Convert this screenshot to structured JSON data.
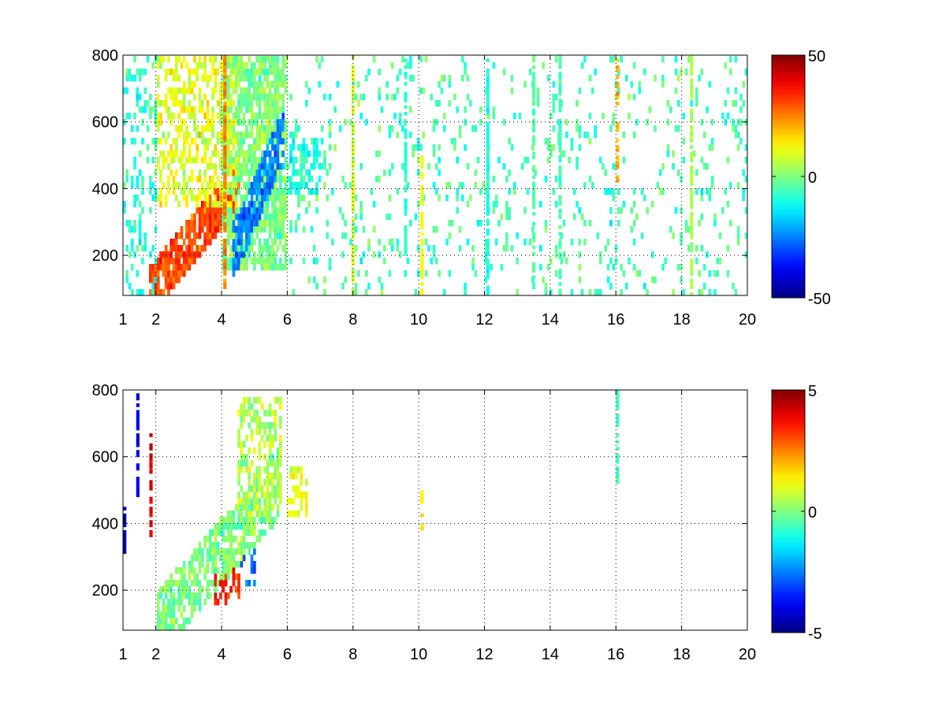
{
  "chart_data": [
    {
      "type": "heatmap",
      "title": "",
      "xlabel": "",
      "ylabel": "",
      "xlim": [
        1,
        20
      ],
      "ylim": [
        80,
        800
      ],
      "x_ticks": [
        "1",
        "2",
        "4",
        "6",
        "8",
        "10",
        "12",
        "14",
        "16",
        "18",
        "20"
      ],
      "y_ticks": [
        "200",
        "400",
        "600",
        "800"
      ],
      "grid": true,
      "colormap": "jet",
      "colorbar": {
        "min": -50,
        "max": 50,
        "ticks": [
          "50",
          "0",
          "-50"
        ]
      },
      "patterns": [
        {
          "kind": "diagonal_band",
          "x0": 1.8,
          "y0": 90,
          "x1": 4.6,
          "y1": 420,
          "width": 150,
          "value": 30,
          "density": 0.85
        },
        {
          "kind": "region",
          "x": [
            4.0,
            6.0
          ],
          "y": [
            160,
            800
          ],
          "value": 0,
          "density": 0.75
        },
        {
          "kind": "diagonal_band",
          "x0": 4.3,
          "y0": 200,
          "x1": 5.9,
          "y1": 560,
          "width": 170,
          "value": -25,
          "density": 0.8
        },
        {
          "kind": "region",
          "x": [
            2.0,
            4.5
          ],
          "y": [
            350,
            800
          ],
          "value": 10,
          "density": 0.45
        },
        {
          "kind": "region",
          "x": [
            6.0,
            7.0
          ],
          "y": [
            380,
            560
          ],
          "value": -10,
          "density": 0.5
        },
        {
          "kind": "region",
          "x": [
            1.0,
            2.0
          ],
          "y": [
            80,
            800
          ],
          "value": -8,
          "density": 0.25
        },
        {
          "kind": "scatter",
          "x": [
            6.0,
            20.0
          ],
          "y": [
            80,
            800
          ],
          "value": -5,
          "density": 0.1
        }
      ],
      "vertical_streaks": [
        {
          "x": 4.1,
          "y": [
            80,
            800
          ],
          "value": 25
        },
        {
          "x": 8.0,
          "y": [
            80,
            800
          ],
          "value": 8
        },
        {
          "x": 9.6,
          "y": [
            200,
            800
          ],
          "value": -8
        },
        {
          "x": 10.1,
          "y": [
            80,
            500
          ],
          "value": 12
        },
        {
          "x": 12.1,
          "y": [
            80,
            800
          ],
          "value": -10
        },
        {
          "x": 13.5,
          "y": [
            80,
            800
          ],
          "value": -4
        },
        {
          "x": 14.3,
          "y": [
            80,
            800
          ],
          "value": -5
        },
        {
          "x": 16.05,
          "y": [
            400,
            800
          ],
          "value": 20
        },
        {
          "x": 18.3,
          "y": [
            80,
            800
          ],
          "value": 4
        }
      ]
    },
    {
      "type": "heatmap",
      "title": "",
      "xlabel": "",
      "ylabel": "",
      "xlim": [
        1,
        20
      ],
      "ylim": [
        80,
        800
      ],
      "x_ticks": [
        "1",
        "2",
        "4",
        "6",
        "8",
        "10",
        "12",
        "14",
        "16",
        "18",
        "20"
      ],
      "y_ticks": [
        "200",
        "400",
        "600",
        "800"
      ],
      "grid": true,
      "colormap": "jet",
      "colorbar": {
        "min": -5,
        "max": 5,
        "ticks": [
          "5",
          "0",
          "-5"
        ]
      },
      "patterns": [
        {
          "kind": "diagonal_band",
          "x0": 2.0,
          "y0": 90,
          "x1": 5.8,
          "y1": 520,
          "width": 200,
          "value": 0,
          "density": 0.7
        },
        {
          "kind": "region",
          "x": [
            4.5,
            5.8
          ],
          "y": [
            420,
            780
          ],
          "value": 0.5,
          "density": 0.5
        },
        {
          "kind": "region",
          "x": [
            3.8,
            4.6
          ],
          "y": [
            150,
            260
          ],
          "value": 3.5,
          "density": 0.4
        },
        {
          "kind": "region",
          "x": [
            4.6,
            5.0
          ],
          "y": [
            220,
            320
          ],
          "value": -3,
          "density": 0.35
        },
        {
          "kind": "region",
          "x": [
            6.0,
            6.6
          ],
          "y": [
            420,
            580
          ],
          "value": 1,
          "density": 0.4
        }
      ],
      "vertical_streaks": [
        {
          "x": 16.05,
          "y": [
            520,
            800
          ],
          "value": -0.5
        },
        {
          "x": 10.1,
          "y": [
            370,
            500
          ],
          "value": 1.5
        },
        {
          "x": 1.85,
          "y": [
            320,
            680
          ],
          "value": 4
        },
        {
          "x": 1.45,
          "y": [
            480,
            790
          ],
          "value": -4
        },
        {
          "x": 1.05,
          "y": [
            300,
            450
          ],
          "value": -4.5
        }
      ]
    }
  ]
}
